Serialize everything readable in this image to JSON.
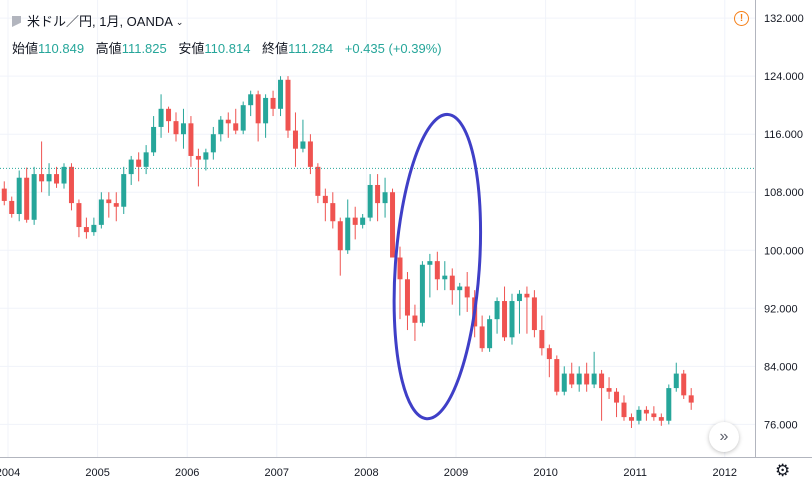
{
  "header": {
    "symbol": "米ドル／円, 1月, OANDA",
    "open_label": "始値",
    "open_value": "110.849",
    "high_label": "高値",
    "high_value": "111.825",
    "low_label": "安値",
    "low_value": "110.814",
    "close_label": "終値",
    "close_value": "111.284",
    "change": "+0.435 (+0.39%)"
  },
  "icons": {
    "alert": "alert-icon",
    "scroll": "double-chevron-right-icon",
    "settings": "gear-icon",
    "symbol": "flag-icon"
  },
  "glyphs": {
    "alert": "!",
    "scroll": "»",
    "settings": "⚙",
    "chevron": "⌄"
  },
  "colors": {
    "up": "#26a69a",
    "down": "#ef5350",
    "price_line": "#26a69a",
    "annotation": "#3f3fc7"
  },
  "chart_data": {
    "type": "candlestick",
    "x_tick_labels": [
      "2004",
      "2005",
      "2006",
      "2007",
      "2008",
      "2009",
      "2010",
      "2011",
      "2012"
    ],
    "y_tick_labels": [
      "132.000",
      "124.000",
      "116.000",
      "108.000",
      "100.000",
      "92.000",
      "84.000",
      "76.000"
    ],
    "ylim": [
      71.5,
      134.5
    ],
    "current_price": 111.284,
    "start": [
      2003,
      12
    ],
    "candles": [
      [
        108.5,
        109.5,
        106.2,
        106.8
      ],
      [
        106.8,
        107.4,
        104.5,
        105.0
      ],
      [
        105.0,
        111.0,
        104.0,
        110.0
      ],
      [
        110.0,
        111.4,
        103.8,
        104.2
      ],
      [
        104.2,
        111.5,
        103.5,
        110.5
      ],
      [
        110.5,
        115.0,
        108.0,
        109.5
      ],
      [
        109.5,
        112.0,
        107.5,
        110.5
      ],
      [
        110.5,
        111.5,
        108.6,
        109.2
      ],
      [
        109.2,
        112.0,
        108.5,
        111.5
      ],
      [
        111.5,
        112.0,
        105.5,
        106.5
      ],
      [
        106.5,
        107.0,
        101.8,
        103.2
      ],
      [
        103.2,
        104.5,
        101.6,
        102.5
      ],
      [
        102.5,
        104.5,
        102.0,
        103.5
      ],
      [
        103.5,
        108.0,
        103.0,
        107.0
      ],
      [
        107.0,
        108.0,
        104.5,
        106.5
      ],
      [
        106.5,
        108.0,
        104.0,
        106.0
      ],
      [
        106.0,
        111.5,
        105.0,
        110.5
      ],
      [
        110.5,
        113.0,
        109.0,
        112.5
      ],
      [
        112.5,
        113.5,
        109.5,
        111.5
      ],
      [
        111.5,
        114.5,
        110.5,
        113.5
      ],
      [
        113.5,
        118.5,
        113.0,
        117.0
      ],
      [
        117.0,
        121.5,
        115.5,
        119.5
      ],
      [
        119.5,
        119.8,
        116.2,
        117.8
      ],
      [
        117.8,
        119.0,
        115.0,
        116.0
      ],
      [
        116.0,
        119.5,
        114.0,
        117.5
      ],
      [
        117.5,
        118.5,
        111.5,
        113.0
      ],
      [
        113.0,
        114.0,
        108.8,
        112.5
      ],
      [
        112.5,
        114.0,
        111.0,
        113.5
      ],
      [
        113.5,
        117.0,
        112.5,
        116.0
      ],
      [
        116.0,
        118.5,
        115.0,
        118.0
      ],
      [
        118.0,
        119.0,
        115.5,
        117.5
      ],
      [
        117.5,
        119.5,
        116.0,
        116.5
      ],
      [
        116.5,
        120.5,
        116.0,
        120.0
      ],
      [
        120.0,
        122.0,
        118.5,
        121.5
      ],
      [
        121.5,
        122.0,
        115.0,
        117.5
      ],
      [
        117.5,
        121.5,
        115.5,
        121.0
      ],
      [
        121.0,
        122.0,
        118.5,
        119.5
      ],
      [
        119.5,
        124.0,
        118.5,
        123.5
      ],
      [
        123.5,
        124.0,
        115.5,
        116.5
      ],
      [
        116.5,
        119.0,
        111.5,
        114.0
      ],
      [
        114.0,
        118.0,
        113.5,
        115.0
      ],
      [
        115.0,
        116.0,
        110.5,
        111.5
      ],
      [
        111.5,
        112.0,
        106.5,
        107.5
      ],
      [
        107.5,
        108.5,
        104.0,
        106.5
      ],
      [
        106.5,
        108.0,
        103.0,
        104.0
      ],
      [
        104.0,
        104.5,
        96.5,
        100.0
      ],
      [
        100.0,
        107.0,
        99.5,
        104.5
      ],
      [
        104.5,
        106.0,
        101.5,
        103.5
      ],
      [
        103.5,
        105.0,
        103.0,
        104.5
      ],
      [
        104.5,
        110.5,
        104.0,
        109.0
      ],
      [
        109.0,
        110.5,
        104.0,
        106.5
      ],
      [
        106.5,
        110.0,
        104.5,
        108.0
      ],
      [
        108.0,
        108.5,
        99.5,
        99.0
      ],
      [
        99.0,
        100.5,
        90.5,
        96.0
      ],
      [
        96.0,
        97.0,
        89.0,
        91.0
      ],
      [
        91.0,
        92.5,
        87.5,
        90.0
      ],
      [
        90.0,
        98.5,
        89.5,
        98.0
      ],
      [
        98.0,
        99.5,
        93.5,
        98.5
      ],
      [
        98.5,
        99.8,
        94.5,
        96.0
      ],
      [
        96.0,
        98.5,
        94.5,
        96.5
      ],
      [
        96.5,
        97.5,
        92.5,
        94.5
      ],
      [
        94.5,
        95.5,
        91.0,
        95.0
      ],
      [
        95.0,
        97.0,
        91.5,
        93.5
      ],
      [
        93.5,
        94.5,
        88.0,
        89.5
      ],
      [
        89.5,
        91.0,
        86.0,
        86.5
      ],
      [
        86.5,
        91.0,
        86.0,
        90.5
      ],
      [
        90.5,
        93.5,
        88.5,
        93.0
      ],
      [
        93.0,
        95.0,
        87.5,
        88.0
      ],
      [
        88.0,
        94.0,
        87.0,
        93.0
      ],
      [
        93.0,
        94.5,
        88.5,
        94.0
      ],
      [
        94.0,
        95.0,
        88.5,
        93.5
      ],
      [
        93.5,
        94.5,
        88.0,
        89.0
      ],
      [
        89.0,
        91.0,
        85.5,
        86.5
      ],
      [
        86.5,
        87.0,
        82.5,
        85.0
      ],
      [
        85.0,
        85.5,
        80.0,
        80.5
      ],
      [
        80.5,
        84.0,
        80.0,
        83.0
      ],
      [
        83.0,
        84.5,
        81.0,
        81.5
      ],
      [
        81.5,
        84.0,
        80.5,
        83.0
      ],
      [
        83.0,
        84.5,
        80.5,
        81.5
      ],
      [
        81.5,
        86.0,
        81.0,
        83.0
      ],
      [
        83.0,
        83.5,
        76.5,
        81.0
      ],
      [
        81.0,
        82.5,
        79.5,
        80.5
      ],
      [
        80.5,
        81.0,
        77.0,
        79.0
      ],
      [
        79.0,
        80.0,
        76.5,
        77.0
      ],
      [
        77.0,
        77.5,
        75.5,
        76.5
      ],
      [
        76.5,
        78.5,
        76.0,
        78.0
      ],
      [
        78.0,
        78.5,
        76.5,
        77.5
      ],
      [
        77.5,
        78.5,
        76.5,
        77.0
      ],
      [
        77.0,
        77.5,
        75.8,
        76.5
      ],
      [
        76.5,
        81.5,
        76.0,
        81.0
      ],
      [
        81.0,
        84.5,
        80.5,
        83.0
      ],
      [
        83.0,
        83.5,
        79.5,
        80.0
      ],
      [
        80.0,
        81.0,
        78.0,
        79.0
      ]
    ]
  }
}
